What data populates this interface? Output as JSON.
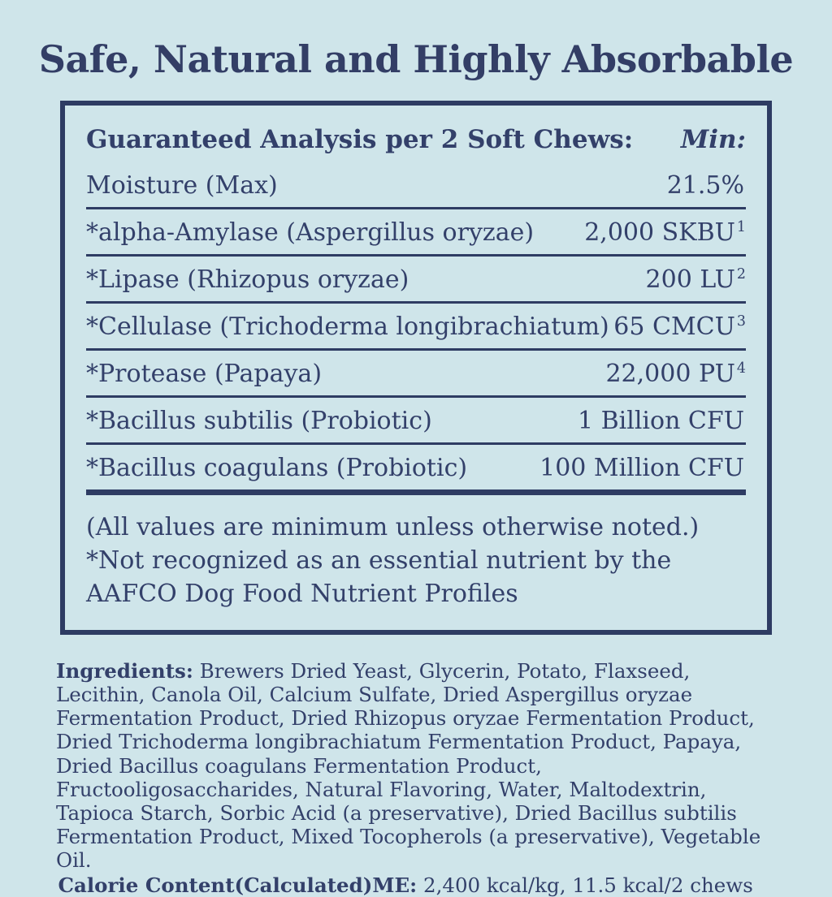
{
  "page": {
    "title": "Safe, Natural and Highly Absorbable"
  },
  "colors": {
    "background": "#cfe5ea",
    "navy": "#2e3c63"
  },
  "panel": {
    "header": {
      "label": "Guaranteed Analysis per 2 Soft Chews:",
      "min_label": "Min:"
    },
    "rows": [
      {
        "name": "Moisture (Max)",
        "value": "21.5%",
        "sup": ""
      },
      {
        "name": "*alpha-Amylase (Aspergillus oryzae)",
        "value": "2,000 SKBU",
        "sup": "1"
      },
      {
        "name": "*Lipase (Rhizopus oryzae)",
        "value": "200 LU",
        "sup": "2"
      },
      {
        "name": "*Cellulase (Trichoderma longibrachiatum)",
        "value": "65 CMCU",
        "sup": "3"
      },
      {
        "name": "*Protease (Papaya)",
        "value": "22,000 PU",
        "sup": "4"
      },
      {
        "name": "*Bacillus subtilis (Probiotic)",
        "value": "1 Billion CFU",
        "sup": ""
      },
      {
        "name": "*Bacillus coagulans (Probiotic)",
        "value": "100 Million CFU",
        "sup": ""
      }
    ],
    "footnotes": [
      "(All values are minimum unless otherwise noted.)",
      "*Not recognized as an essential nutrient by the AAFCO Dog Food Nutrient Profiles"
    ]
  },
  "ingredients": {
    "label": "Ingredients:",
    "text": " Brewers Dried Yeast, Glycerin, Potato, Flaxseed, Lecithin, Canola Oil, Calcium Sulfate, Dried Aspergillus oryzae Fermentation Product, Dried Rhizopus oryzae Fermentation Product, Dried Trichoderma longibrachiatum Fermentation Product, Papaya, Dried Bacillus coagulans Fermentation Product, Fructooligosaccharides, Natural Flavoring, Water, Maltodextrin, Tapioca Starch, Sorbic Acid (a preservative), Dried Bacillus subtilis Fermentation Product, Mixed Tocopherols (a preservative), Vegetable Oil."
  },
  "calorie": {
    "label": "Calorie Content(Calculated)ME:",
    "text": " 2,400 kcal/kg, 11.5 kcal/2 chews"
  }
}
